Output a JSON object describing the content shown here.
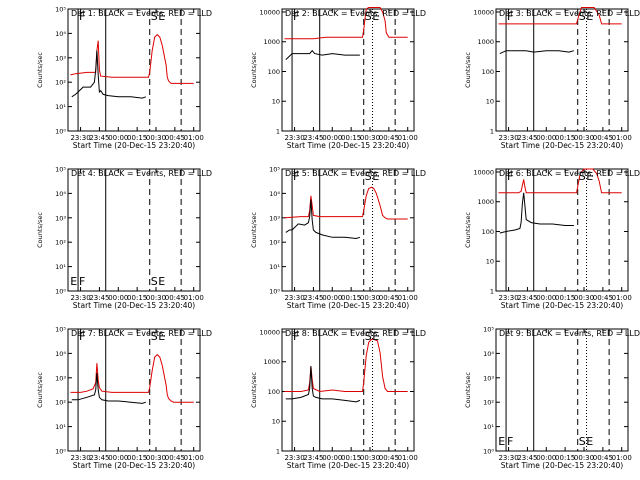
{
  "figure": {
    "xlabel": "Start Time (20-Dec-15 23:20:40)",
    "ylabel": "Counts/sec",
    "x_ticks": [
      "23:30",
      "23:45",
      "00:00",
      "00:15",
      "00:30",
      "00:45",
      "01:00"
    ],
    "x_tick_values": [
      0,
      15,
      30,
      45,
      60,
      75,
      90
    ],
    "xlim": [
      -10,
      95
    ]
  },
  "colors": {
    "events": "#000000",
    "lld": "#dd0000",
    "axes": "#000000"
  },
  "chart_data": [
    {
      "type": "line",
      "title": "Det 1: BLACK = Events, RED = LLD",
      "yscale": "log",
      "ylim_log10": [
        0,
        5
      ],
      "y_ticks": [
        "10⁰",
        "10¹",
        "10²",
        "10³",
        "10⁴",
        "10⁵"
      ],
      "flag_labels": [
        "F",
        "S",
        "E"
      ],
      "flag_x": [
        -2,
        55,
        61
      ],
      "vlines": [
        {
          "x": -2,
          "style": "solid"
        },
        {
          "x": 20,
          "style": "solid"
        },
        {
          "x": 55,
          "style": "dashed"
        },
        {
          "x": 80,
          "style": "dashed"
        }
      ],
      "series": [
        {
          "name": "LLD",
          "color": "#dd0000",
          "x": [
            -8,
            -4,
            5,
            12,
            13,
            14,
            15,
            16,
            25,
            40,
            54,
            55,
            57,
            59,
            61,
            63,
            65,
            68,
            69,
            70,
            71,
            72,
            73,
            75,
            90
          ],
          "y_log10": [
            2.3,
            2.35,
            2.4,
            2.4,
            3.3,
            3.7,
            2.5,
            2.25,
            2.2,
            2.2,
            2.2,
            2.4,
            3.3,
            3.85,
            3.95,
            3.85,
            3.5,
            2.7,
            2.2,
            2.05,
            2.0,
            1.95,
            1.95,
            1.95,
            1.95
          ]
        },
        {
          "name": "Events",
          "color": "#000000",
          "x": [
            -8,
            -7,
            -4,
            -2,
            2,
            8,
            11,
            12,
            13,
            14,
            15,
            16,
            18,
            22,
            30,
            40,
            49,
            52,
            53
          ],
          "y_log10": [
            null,
            1.4,
            1.5,
            1.6,
            1.8,
            1.8,
            2.0,
            2.5,
            3.3,
            2.3,
            1.6,
            1.65,
            1.5,
            1.45,
            1.4,
            1.4,
            1.35,
            1.4,
            null
          ]
        }
      ]
    },
    {
      "type": "line",
      "title": "Det 2: BLACK = Events, RED = LLD",
      "yscale": "log",
      "ylim_log10": [
        0,
        4.1
      ],
      "y_ticks": [
        "1",
        "10",
        "100",
        "1000",
        "10000"
      ],
      "flag_labels": [
        "F",
        "S",
        "E"
      ],
      "flag_x": [
        -2,
        55,
        61
      ],
      "vlines": [
        {
          "x": -2,
          "style": "solid"
        },
        {
          "x": 20,
          "style": "solid"
        },
        {
          "x": 55,
          "style": "dashed"
        },
        {
          "x": 62,
          "style": "dotted"
        },
        {
          "x": 80,
          "style": "dashed"
        }
      ],
      "series": [
        {
          "name": "LLD",
          "color": "#dd0000",
          "x": [
            -8,
            10,
            15,
            25,
            40,
            54,
            55,
            57,
            59,
            68,
            70,
            72,
            73,
            75,
            80,
            90
          ],
          "y_log10": [
            3.1,
            3.1,
            3.1,
            3.15,
            3.15,
            3.15,
            3.4,
            4.1,
            4.15,
            4.15,
            4.0,
            3.7,
            3.3,
            3.15,
            3.15,
            3.15
          ]
        },
        {
          "name": "Events",
          "color": "#000000",
          "x": [
            -8,
            -7,
            -2,
            5,
            12,
            14,
            16,
            22,
            30,
            40,
            48,
            52,
            53
          ],
          "y_log10": [
            null,
            2.4,
            2.6,
            2.6,
            2.6,
            2.7,
            2.6,
            2.55,
            2.6,
            2.55,
            2.55,
            2.55,
            null
          ]
        }
      ]
    },
    {
      "type": "line",
      "title": "Det 3: BLACK = Events, RED = LLD",
      "yscale": "log",
      "ylim_log10": [
        0,
        4.1
      ],
      "y_ticks": [
        "1",
        "10",
        "100",
        "1000",
        "10000"
      ],
      "flag_labels": [
        "F",
        "S",
        "E"
      ],
      "flag_x": [
        -2,
        55,
        61
      ],
      "vlines": [
        {
          "x": -2,
          "style": "solid"
        },
        {
          "x": 20,
          "style": "solid"
        },
        {
          "x": 55,
          "style": "dashed"
        },
        {
          "x": 62,
          "style": "dotted"
        },
        {
          "x": 80,
          "style": "dashed"
        }
      ],
      "series": [
        {
          "name": "LLD",
          "color": "#dd0000",
          "x": [
            -8,
            10,
            25,
            40,
            54,
            56,
            58,
            68,
            72,
            74,
            90
          ],
          "y_log10": [
            3.6,
            3.6,
            3.6,
            3.6,
            3.6,
            3.9,
            4.15,
            4.15,
            3.9,
            3.6,
            3.6
          ]
        },
        {
          "name": "Events",
          "color": "#000000",
          "x": [
            -8,
            -7,
            -2,
            8,
            14,
            20,
            30,
            40,
            48,
            52,
            53
          ],
          "y_log10": [
            null,
            2.6,
            2.7,
            2.7,
            2.7,
            2.65,
            2.7,
            2.7,
            2.65,
            2.7,
            null
          ]
        }
      ]
    },
    {
      "type": "line",
      "title": "Det 4: BLACK = Events, RED = LLD",
      "yscale": "log",
      "ylim_log10": [
        0,
        5
      ],
      "y_ticks": [
        "10⁰",
        "10¹",
        "10²",
        "10³",
        "10⁴",
        "10⁵"
      ],
      "flag_labels": [
        "E",
        "F",
        "S",
        "E"
      ],
      "flag_x": [
        -9,
        -2,
        55,
        61
      ],
      "vlines": [
        {
          "x": -2,
          "style": "solid"
        },
        {
          "x": 20,
          "style": "solid"
        },
        {
          "x": 55,
          "style": "dashed"
        },
        {
          "x": 80,
          "style": "dashed"
        }
      ],
      "series": []
    },
    {
      "type": "line",
      "title": "Det 5: BLACK = Events, RED = LLD",
      "yscale": "log",
      "ylim_log10": [
        0,
        5
      ],
      "y_ticks": [
        "10⁰",
        "10¹",
        "10²",
        "10³",
        "10⁴",
        "10⁵"
      ],
      "flag_labels": [
        "F",
        "S",
        "E"
      ],
      "flag_x": [
        -2,
        55,
        61
      ],
      "vlines": [
        {
          "x": -2,
          "style": "solid"
        },
        {
          "x": 20,
          "style": "solid"
        },
        {
          "x": 55,
          "style": "dashed"
        },
        {
          "x": 62,
          "style": "dotted"
        },
        {
          "x": 80,
          "style": "dashed"
        }
      ],
      "series": [
        {
          "name": "LLD",
          "color": "#dd0000",
          "x": [
            -8,
            5,
            11,
            12,
            13,
            14,
            15,
            20,
            30,
            40,
            54,
            55,
            57,
            59,
            61,
            63,
            65,
            68,
            70,
            72,
            74,
            76,
            90
          ],
          "y_log10": [
            3.0,
            3.05,
            3.05,
            3.3,
            3.9,
            3.5,
            3.1,
            3.05,
            3.05,
            3.05,
            3.05,
            3.3,
            3.9,
            4.2,
            4.25,
            4.2,
            4.0,
            3.5,
            3.1,
            3.0,
            2.95,
            2.95,
            2.95
          ]
        },
        {
          "name": "Events",
          "color": "#000000",
          "x": [
            -8,
            -7,
            -4,
            -2,
            3,
            8,
            11,
            12,
            13,
            14,
            15,
            17,
            22,
            30,
            40,
            49,
            52,
            53
          ],
          "y_log10": [
            null,
            2.4,
            2.5,
            2.5,
            2.75,
            2.7,
            2.8,
            3.05,
            3.75,
            2.9,
            2.5,
            2.4,
            2.3,
            2.2,
            2.2,
            2.15,
            2.2,
            null
          ]
        }
      ]
    },
    {
      "type": "line",
      "title": "Det 6: BLACK = Events, RED = LLD",
      "yscale": "log",
      "ylim_log10": [
        0,
        4.1
      ],
      "y_ticks": [
        "1",
        "10",
        "100",
        "1000",
        "10000"
      ],
      "flag_labels": [
        "F",
        "S",
        "E"
      ],
      "flag_x": [
        -2,
        55,
        61
      ],
      "vlines": [
        {
          "x": -2,
          "style": "solid"
        },
        {
          "x": 20,
          "style": "solid"
        },
        {
          "x": 55,
          "style": "dashed"
        },
        {
          "x": 62,
          "style": "dotted"
        },
        {
          "x": 80,
          "style": "dashed"
        }
      ],
      "series": [
        {
          "name": "LLD",
          "color": "#dd0000",
          "x": [
            -8,
            8,
            10,
            11,
            12,
            13,
            14,
            20,
            30,
            40,
            54,
            55,
            57,
            60,
            67,
            70,
            72,
            74,
            90
          ],
          "y_log10": [
            3.3,
            3.3,
            3.35,
            3.55,
            3.75,
            3.5,
            3.3,
            3.3,
            3.3,
            3.3,
            3.3,
            3.5,
            3.95,
            4.1,
            4.1,
            3.95,
            3.7,
            3.3,
            3.3
          ]
        },
        {
          "name": "Events",
          "color": "#000000",
          "x": [
            -8,
            -7,
            -2,
            5,
            9,
            10,
            11,
            12,
            14,
            18,
            25,
            35,
            45,
            52,
            53
          ],
          "y_log10": [
            null,
            1.95,
            2.0,
            2.05,
            2.1,
            2.3,
            2.95,
            3.3,
            2.4,
            2.3,
            2.25,
            2.25,
            2.2,
            2.2,
            null
          ]
        }
      ]
    },
    {
      "type": "line",
      "title": "Det 7: BLACK = Events, RED = LLD",
      "yscale": "log",
      "ylim_log10": [
        0,
        5
      ],
      "y_ticks": [
        "10⁰",
        "10¹",
        "10²",
        "10³",
        "10⁴",
        "10⁵"
      ],
      "flag_labels": [
        "F",
        "S",
        "E"
      ],
      "flag_x": [
        -2,
        55,
        61
      ],
      "vlines": [
        {
          "x": -2,
          "style": "solid"
        },
        {
          "x": 20,
          "style": "solid"
        },
        {
          "x": 55,
          "style": "dashed"
        },
        {
          "x": 80,
          "style": "dashed"
        }
      ],
      "series": [
        {
          "name": "LLD",
          "color": "#dd0000",
          "x": [
            -8,
            0,
            5,
            10,
            12,
            13,
            14,
            15,
            17,
            25,
            40,
            54,
            55,
            57,
            59,
            61,
            63,
            65,
            68,
            69,
            70,
            72,
            74,
            90
          ],
          "y_log10": [
            2.4,
            2.4,
            2.45,
            2.55,
            2.8,
            3.6,
            2.9,
            2.6,
            2.45,
            2.4,
            2.4,
            2.4,
            2.6,
            3.3,
            3.85,
            3.95,
            3.85,
            3.5,
            2.7,
            2.3,
            2.15,
            2.05,
            2.0,
            2.0
          ]
        },
        {
          "name": "Events",
          "color": "#000000",
          "x": [
            -8,
            -7,
            -2,
            5,
            11,
            12,
            13,
            14,
            15,
            17,
            22,
            30,
            40,
            49,
            52,
            53
          ],
          "y_log10": [
            null,
            2.1,
            2.1,
            2.2,
            2.3,
            2.5,
            3.2,
            2.5,
            2.2,
            2.1,
            2.05,
            2.05,
            2.0,
            1.95,
            2.0,
            null
          ]
        }
      ]
    },
    {
      "type": "line",
      "title": "Det 8: BLACK = Events, RED = LLD",
      "yscale": "log",
      "ylim_log10": [
        0,
        4.1
      ],
      "y_ticks": [
        "1",
        "10",
        "100",
        "1000",
        "10000"
      ],
      "flag_labels": [
        "F",
        "S",
        "E"
      ],
      "flag_x": [
        -2,
        55,
        61
      ],
      "vlines": [
        {
          "x": -2,
          "style": "solid"
        },
        {
          "x": 20,
          "style": "solid"
        },
        {
          "x": 55,
          "style": "dashed"
        },
        {
          "x": 62,
          "style": "dotted"
        },
        {
          "x": 80,
          "style": "dashed"
        }
      ],
      "series": [
        {
          "name": "LLD",
          "color": "#dd0000",
          "x": [
            -8,
            5,
            11,
            12,
            13,
            14,
            15,
            20,
            30,
            40,
            54,
            55,
            57,
            59,
            61,
            63,
            66,
            68,
            70,
            72,
            74,
            76,
            90
          ],
          "y_log10": [
            2.0,
            2.0,
            2.05,
            2.3,
            2.85,
            2.4,
            2.1,
            2.0,
            2.05,
            2.0,
            2.0,
            2.3,
            3.2,
            3.65,
            3.75,
            3.75,
            3.7,
            3.3,
            2.5,
            2.1,
            2.0,
            2.0,
            2.0
          ]
        },
        {
          "name": "Events",
          "color": "#000000",
          "x": [
            -8,
            -7,
            -2,
            5,
            11,
            12,
            13,
            14,
            15,
            17,
            22,
            30,
            40,
            49,
            52,
            53
          ],
          "y_log10": [
            null,
            1.75,
            1.75,
            1.8,
            1.9,
            2.1,
            2.85,
            2.1,
            1.85,
            1.8,
            1.75,
            1.75,
            1.7,
            1.65,
            1.7,
            null
          ]
        }
      ]
    },
    {
      "type": "line",
      "title": "Det 9: BLACK = Events, RED = LLD",
      "yscale": "log",
      "ylim_log10": [
        0,
        5
      ],
      "y_ticks": [
        "10⁰",
        "10¹",
        "10²",
        "10³",
        "10⁴",
        "10⁵"
      ],
      "flag_labels": [
        "E",
        "F",
        "S",
        "E"
      ],
      "flag_x": [
        -9,
        -2,
        55,
        61
      ],
      "vlines": [
        {
          "x": -2,
          "style": "solid"
        },
        {
          "x": 20,
          "style": "solid"
        },
        {
          "x": 55,
          "style": "dashed"
        },
        {
          "x": 62,
          "style": "dotted"
        },
        {
          "x": 80,
          "style": "dashed"
        }
      ],
      "series": []
    }
  ]
}
